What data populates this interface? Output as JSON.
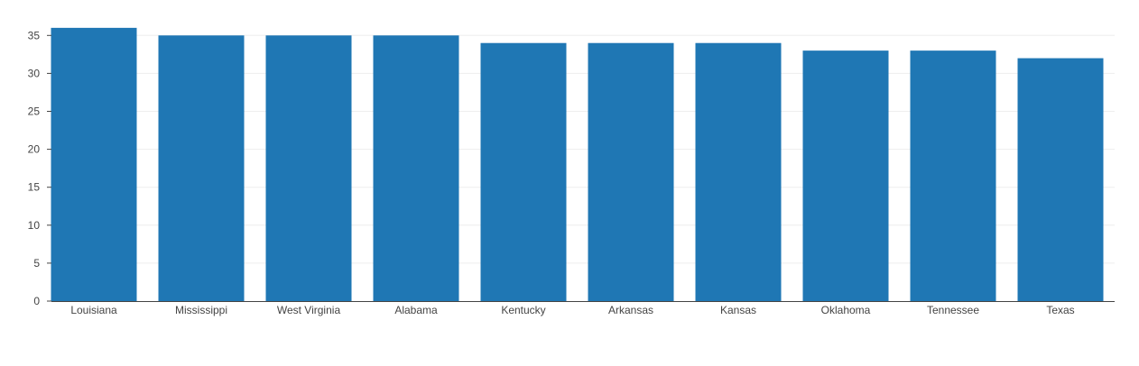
{
  "chart_data": {
    "type": "bar",
    "title": "",
    "xlabel": "",
    "ylabel": "",
    "categories": [
      "Louisiana",
      "Mississippi",
      "West Virginia",
      "Alabama",
      "Kentucky",
      "Arkansas",
      "Kansas",
      "Oklahoma",
      "Tennessee",
      "Texas"
    ],
    "values": [
      36,
      35,
      35,
      35,
      34,
      34,
      34,
      33,
      33,
      32
    ],
    "ylim": [
      0,
      36
    ],
    "yticks": [
      0,
      5,
      10,
      15,
      20,
      25,
      30,
      35
    ],
    "grid": true,
    "legend": "none",
    "bar_color": "#1f77b4",
    "grid_color": "#eeeeee",
    "axis_color": "#444444"
  }
}
